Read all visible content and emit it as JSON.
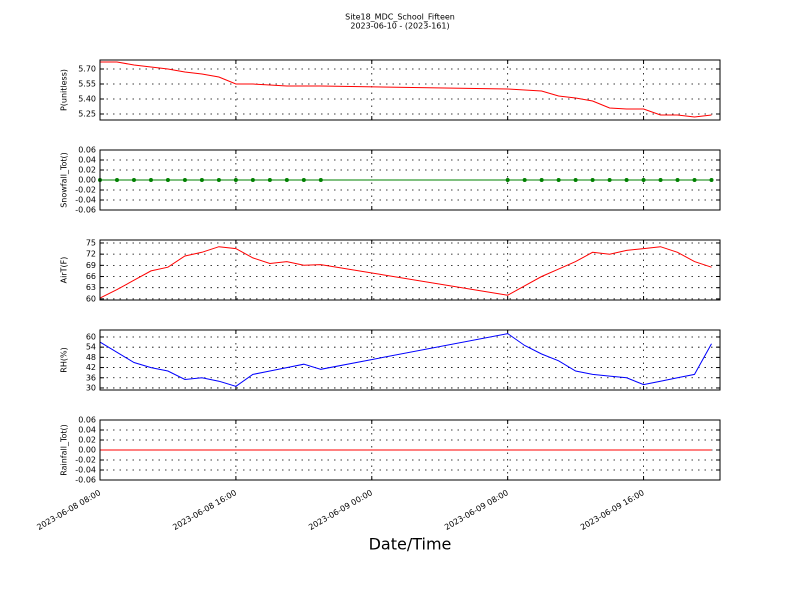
{
  "chart_data": [
    {
      "type": "line",
      "title": "Site18_MDC_School_Fifteen",
      "subtitle": "2023-06-10 - (2023-161)",
      "ylabel": "P(unitless)",
      "x": [
        "2023-06-08 08:00",
        "2023-06-08 09:00",
        "2023-06-08 10:00",
        "2023-06-08 11:00",
        "2023-06-08 12:00",
        "2023-06-08 13:00",
        "2023-06-08 14:00",
        "2023-06-08 15:00",
        "2023-06-08 16:00",
        "2023-06-08 17:00",
        "2023-06-08 18:00",
        "2023-06-08 19:00",
        "2023-06-08 20:00",
        "2023-06-08 21:00",
        "2023-06-09 08:00",
        "2023-06-09 09:00",
        "2023-06-09 10:00",
        "2023-06-09 11:00",
        "2023-06-09 12:00",
        "2023-06-09 13:00",
        "2023-06-09 14:00",
        "2023-06-09 15:00",
        "2023-06-09 16:00",
        "2023-06-09 17:00",
        "2023-06-09 18:00",
        "2023-06-09 19:00",
        "2023-06-09 20:00"
      ],
      "series": [
        {
          "color": "#ff0000",
          "values": [
            5.77,
            5.77,
            5.74,
            5.72,
            5.7,
            5.67,
            5.65,
            5.62,
            5.55,
            5.55,
            5.54,
            5.53,
            5.53,
            5.53,
            5.5,
            5.49,
            5.48,
            5.43,
            5.41,
            5.38,
            5.31,
            5.3,
            5.3,
            5.24,
            5.24,
            5.22,
            5.24
          ]
        }
      ],
      "ylim": [
        5.19,
        5.79
      ],
      "yticks": [
        {
          "value": 5.25,
          "label": "5.25"
        },
        {
          "value": 5.4,
          "label": "5.40"
        },
        {
          "value": 5.55,
          "label": "5.55"
        },
        {
          "value": 5.7,
          "label": "5.70"
        }
      ],
      "xlim": [
        "2023-06-08 08:00",
        "2023-06-09 20:30"
      ],
      "xticks": [
        "2023-06-08 08:00",
        "2023-06-08 16:00",
        "2023-06-09 00:00",
        "2023-06-09 08:00",
        "2023-06-09 16:00"
      ],
      "grid": true
    },
    {
      "type": "line",
      "ylabel": "Snowfall_Tot()",
      "marker": "o",
      "x": [
        "2023-06-08 08:00",
        "2023-06-08 09:00",
        "2023-06-08 10:00",
        "2023-06-08 11:00",
        "2023-06-08 12:00",
        "2023-06-08 13:00",
        "2023-06-08 14:00",
        "2023-06-08 15:00",
        "2023-06-08 16:00",
        "2023-06-08 17:00",
        "2023-06-08 18:00",
        "2023-06-08 19:00",
        "2023-06-08 20:00",
        "2023-06-08 21:00",
        "2023-06-09 08:00",
        "2023-06-09 09:00",
        "2023-06-09 10:00",
        "2023-06-09 11:00",
        "2023-06-09 12:00",
        "2023-06-09 13:00",
        "2023-06-09 14:00",
        "2023-06-09 15:00",
        "2023-06-09 16:00",
        "2023-06-09 17:00",
        "2023-06-09 18:00",
        "2023-06-09 19:00",
        "2023-06-09 20:00"
      ],
      "series": [
        {
          "color": "#008000",
          "values": [
            0,
            0,
            0,
            0,
            0,
            0,
            0,
            0,
            0,
            0,
            0,
            0,
            0,
            0,
            0,
            0,
            0,
            0,
            0,
            0,
            0,
            0,
            0,
            0,
            0,
            0,
            0
          ]
        }
      ],
      "ylim": [
        -0.06,
        0.06
      ],
      "yticks": [
        {
          "value": -0.06,
          "label": "-0.06"
        },
        {
          "value": -0.04,
          "label": "-0.04"
        },
        {
          "value": -0.02,
          "label": "-0.02"
        },
        {
          "value": 0,
          "label": "0.00"
        },
        {
          "value": 0.02,
          "label": "0.02"
        },
        {
          "value": 0.04,
          "label": "0.04"
        },
        {
          "value": 0.06,
          "label": "0.06"
        }
      ],
      "xlim": [
        "2023-06-08 08:00",
        "2023-06-09 20:30"
      ],
      "xticks": [
        "2023-06-08 08:00",
        "2023-06-08 16:00",
        "2023-06-09 00:00",
        "2023-06-09 08:00",
        "2023-06-09 16:00"
      ],
      "grid": true
    },
    {
      "type": "line",
      "ylabel": "AirT(F)",
      "x": [
        "2023-06-08 08:00",
        "2023-06-08 09:00",
        "2023-06-08 10:00",
        "2023-06-08 11:00",
        "2023-06-08 12:00",
        "2023-06-08 13:00",
        "2023-06-08 14:00",
        "2023-06-08 15:00",
        "2023-06-08 16:00",
        "2023-06-08 17:00",
        "2023-06-08 18:00",
        "2023-06-08 19:00",
        "2023-06-08 20:00",
        "2023-06-08 21:00",
        "2023-06-09 08:00",
        "2023-06-09 09:00",
        "2023-06-09 10:00",
        "2023-06-09 11:00",
        "2023-06-09 12:00",
        "2023-06-09 13:00",
        "2023-06-09 14:00",
        "2023-06-09 15:00",
        "2023-06-09 16:00",
        "2023-06-09 17:00",
        "2023-06-09 18:00",
        "2023-06-09 19:00",
        "2023-06-09 20:00"
      ],
      "series": [
        {
          "color": "#ff0000",
          "values": [
            60.2,
            62.5,
            65,
            67.5,
            68.5,
            71.5,
            72.5,
            74,
            73.5,
            71,
            69.5,
            70,
            69,
            69.2,
            61,
            63.5,
            66,
            68,
            70,
            72.5,
            72,
            73,
            73.5,
            74,
            72.5,
            70,
            68.5
          ]
        }
      ],
      "ylim": [
        59.7,
        75.8
      ],
      "yticks": [
        60,
        63,
        66,
        69,
        72,
        75
      ],
      "xlim": [
        "2023-06-08 08:00",
        "2023-06-09 20:30"
      ],
      "xticks": [
        "2023-06-08 08:00",
        "2023-06-08 16:00",
        "2023-06-09 00:00",
        "2023-06-09 08:00",
        "2023-06-09 16:00"
      ],
      "grid": true
    },
    {
      "type": "line",
      "ylabel": "RH(%)",
      "x": [
        "2023-06-08 08:00",
        "2023-06-08 09:00",
        "2023-06-08 10:00",
        "2023-06-08 11:00",
        "2023-06-08 12:00",
        "2023-06-08 13:00",
        "2023-06-08 14:00",
        "2023-06-08 15:00",
        "2023-06-08 16:00",
        "2023-06-08 17:00",
        "2023-06-08 18:00",
        "2023-06-08 19:00",
        "2023-06-08 20:00",
        "2023-06-08 21:00",
        "2023-06-09 08:00",
        "2023-06-09 09:00",
        "2023-06-09 10:00",
        "2023-06-09 11:00",
        "2023-06-09 12:00",
        "2023-06-09 13:00",
        "2023-06-09 14:00",
        "2023-06-09 15:00",
        "2023-06-09 16:00",
        "2023-06-09 17:00",
        "2023-06-09 18:00",
        "2023-06-09 19:00",
        "2023-06-09 20:00"
      ],
      "series": [
        {
          "color": "#0000ff",
          "values": [
            57,
            51,
            45,
            42,
            40,
            35,
            36,
            34,
            31,
            38,
            40,
            42,
            44,
            41,
            62,
            55,
            50,
            46,
            40,
            38,
            37,
            36,
            32,
            34,
            36,
            38,
            56
          ]
        }
      ],
      "ylim": [
        28.8,
        64.1
      ],
      "yticks": [
        30,
        36,
        42,
        48,
        54,
        60
      ],
      "xlim": [
        "2023-06-08 08:00",
        "2023-06-09 20:30"
      ],
      "xticks": [
        "2023-06-08 08:00",
        "2023-06-08 16:00",
        "2023-06-09 00:00",
        "2023-06-09 08:00",
        "2023-06-09 16:00"
      ],
      "grid": true
    },
    {
      "type": "line",
      "ylabel": "Rainfall_Tot()",
      "xlabel": "Date/Time",
      "x": [
        "2023-06-08 08:00",
        "2023-06-08 09:00",
        "2023-06-08 10:00",
        "2023-06-08 11:00",
        "2023-06-08 12:00",
        "2023-06-08 13:00",
        "2023-06-08 14:00",
        "2023-06-08 15:00",
        "2023-06-08 16:00",
        "2023-06-08 17:00",
        "2023-06-08 18:00",
        "2023-06-08 19:00",
        "2023-06-08 20:00",
        "2023-06-08 21:00",
        "2023-06-09 08:00",
        "2023-06-09 09:00",
        "2023-06-09 10:00",
        "2023-06-09 11:00",
        "2023-06-09 12:00",
        "2023-06-09 13:00",
        "2023-06-09 14:00",
        "2023-06-09 15:00",
        "2023-06-09 16:00",
        "2023-06-09 17:00",
        "2023-06-09 18:00",
        "2023-06-09 19:00",
        "2023-06-09 20:00"
      ],
      "series": [
        {
          "color": "#ff0000",
          "values": [
            0,
            0,
            0,
            0,
            0,
            0,
            0,
            0,
            0,
            0,
            0,
            0,
            0,
            0,
            0,
            0,
            0,
            0,
            0,
            0,
            0,
            0,
            0,
            0,
            0,
            0,
            0
          ]
        }
      ],
      "ylim": [
        -0.06,
        0.06
      ],
      "yticks": [
        {
          "value": -0.06,
          "label": "-0.06"
        },
        {
          "value": -0.04,
          "label": "-0.04"
        },
        {
          "value": -0.02,
          "label": "-0.02"
        },
        {
          "value": 0,
          "label": "0.00"
        },
        {
          "value": 0.02,
          "label": "0.02"
        },
        {
          "value": 0.04,
          "label": "0.04"
        },
        {
          "value": 0.06,
          "label": "0.06"
        }
      ],
      "xlim": [
        "2023-06-08 08:00",
        "2023-06-09 20:30"
      ],
      "xticks": [
        "2023-06-08 08:00",
        "2023-06-08 16:00",
        "2023-06-09 00:00",
        "2023-06-09 08:00",
        "2023-06-09 16:00"
      ],
      "grid": true
    }
  ]
}
